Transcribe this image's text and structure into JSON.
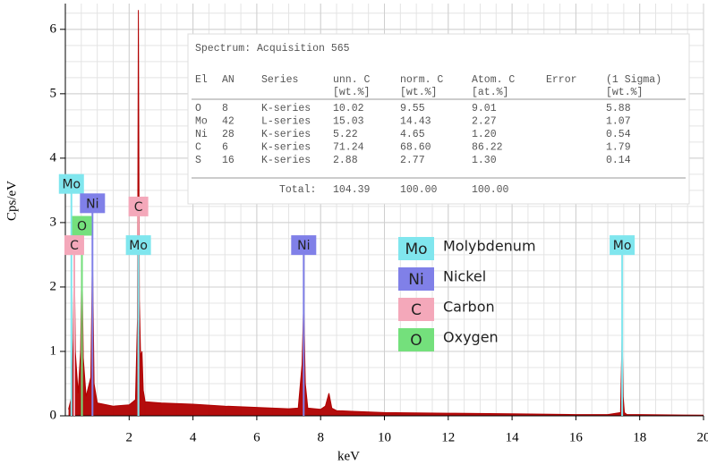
{
  "chart_data": {
    "type": "area",
    "xlabel": "keV",
    "ylabel": "Cps/eV",
    "color": "#b00000",
    "x": [
      0.1,
      0.2,
      0.25,
      0.28,
      0.31,
      0.4,
      0.48,
      0.52,
      0.56,
      0.65,
      0.8,
      0.85,
      0.9,
      1.0,
      1.5,
      2.0,
      2.2,
      2.26,
      2.29,
      2.32,
      2.36,
      2.4,
      2.44,
      2.5,
      3,
      4,
      5,
      6,
      7,
      7.3,
      7.42,
      7.47,
      7.52,
      7.6,
      8,
      8.15,
      8.26,
      8.35,
      8.5,
      9,
      10,
      12,
      14,
      16,
      17,
      17.4,
      17.45,
      17.48,
      17.52,
      17.6,
      18,
      20
    ],
    "values": [
      0.1,
      0.3,
      1.2,
      2.6,
      1.0,
      0.35,
      1.0,
      2.5,
      0.9,
      0.3,
      0.6,
      2.5,
      0.5,
      0.2,
      0.15,
      0.17,
      0.25,
      1.5,
      6.3,
      1.8,
      0.9,
      1.0,
      0.4,
      0.22,
      0.2,
      0.18,
      0.15,
      0.13,
      0.11,
      0.12,
      0.8,
      1.75,
      0.5,
      0.12,
      0.1,
      0.15,
      0.35,
      0.12,
      0.08,
      0.07,
      0.05,
      0.04,
      0.03,
      0.02,
      0.02,
      0.05,
      1.3,
      0.3,
      0.05,
      0.02,
      0.02,
      0.01
    ],
    "xlim": [
      0,
      20
    ],
    "xticks": [
      2,
      4,
      6,
      8,
      10,
      12,
      14,
      16,
      18,
      20
    ],
    "ylim": [
      0,
      6.4
    ],
    "yticks": [
      0,
      1,
      2,
      3,
      4,
      5,
      6
    ],
    "grid": true,
    "legend": [
      {
        "symbol": "Mo",
        "name": "Molybdenum",
        "color": "#80e6ee"
      },
      {
        "symbol": "Ni",
        "name": "Nickel",
        "color": "#8080e8"
      },
      {
        "symbol": "C",
        "name": "Carbon",
        "color": "#f4a8ba"
      },
      {
        "symbol": "O",
        "name": "Oxygen",
        "color": "#74e07c"
      }
    ],
    "peaks": [
      {
        "symbol": "Mo",
        "x": 0.19
      },
      {
        "symbol": "Ni",
        "x": 0.85
      },
      {
        "symbol": "O",
        "x": 0.52
      },
      {
        "symbol": "C",
        "x": 0.28
      },
      {
        "symbol": "C",
        "x": 2.29
      },
      {
        "symbol": "Mo",
        "x": 2.29
      },
      {
        "symbol": "Ni",
        "x": 7.47
      },
      {
        "symbol": "Mo",
        "x": 17.45
      }
    ]
  },
  "table": {
    "title": "Spectrum: Acquisition 565",
    "columns": [
      {
        "name": "El"
      },
      {
        "name": "AN"
      },
      {
        "name": "Series"
      },
      {
        "name": "unn. C",
        "unit": "[wt.%]"
      },
      {
        "name": "norm. C",
        "unit": "[wt.%]"
      },
      {
        "name": "Atom. C",
        "unit": "[at.%]"
      },
      {
        "name": "Error"
      },
      {
        "name": "(1 Sigma)",
        "unit": "[wt.%]"
      }
    ],
    "rows": [
      [
        "O",
        "8",
        "K-series",
        "10.02",
        "9.55",
        "9.01",
        "5.88"
      ],
      [
        "Mo",
        "42",
        "L-series",
        "15.03",
        "14.43",
        "2.27",
        "1.07"
      ],
      [
        "Ni",
        "28",
        "K-series",
        "5.22",
        "4.65",
        "1.20",
        "0.54"
      ],
      [
        "C",
        "6",
        "K-series",
        "71.24",
        "68.60",
        "86.22",
        "1.79"
      ],
      [
        "S",
        "16",
        "K-series",
        "2.88",
        "2.77",
        "1.30",
        "0.14"
      ]
    ],
    "total": {
      "label": "Total:",
      "values": [
        "104.39",
        "100.00",
        "100.00"
      ]
    }
  }
}
